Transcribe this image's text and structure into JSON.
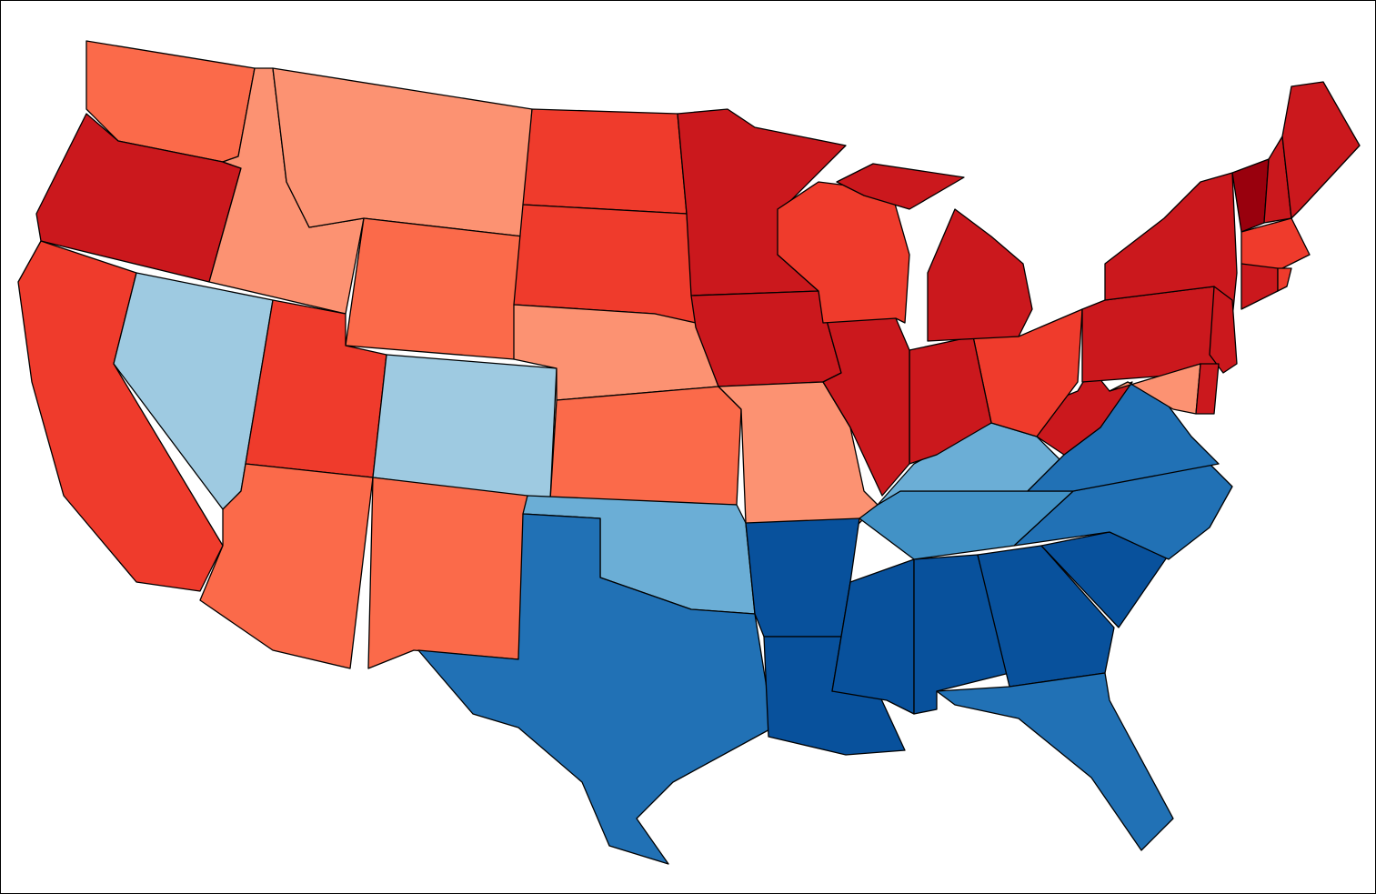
{
  "map": {
    "regions": [
      {
        "color": "#fb6a4a"
      },
      {
        "color": "#cb181d"
      },
      {
        "color": "#ef3b2c"
      },
      {
        "color": "#9ecae1"
      },
      {
        "color": "#fc9272"
      },
      {
        "color": "#fc9272"
      },
      {
        "color": "#fb6a4a"
      },
      {
        "color": "#ef3b2c"
      },
      {
        "color": "#9ecae1"
      },
      {
        "color": "#fb6a4a"
      },
      {
        "color": "#fb6a4a"
      },
      {
        "color": "#ef3b2c"
      },
      {
        "color": "#ef3b2c"
      },
      {
        "color": "#fc9272"
      },
      {
        "color": "#fb6a4a"
      },
      {
        "color": "#6baed6"
      },
      {
        "color": "#2171b5"
      },
      {
        "color": "#cb181d"
      },
      {
        "color": "#cb181d"
      },
      {
        "color": "#fc9272"
      },
      {
        "color": "#08519c"
      },
      {
        "color": "#08519c"
      },
      {
        "color": "#08519c"
      },
      {
        "color": "#08519c"
      },
      {
        "color": "#08519c"
      },
      {
        "color": "#2171b5"
      },
      {
        "color": "#08519c"
      },
      {
        "color": "#2171b5"
      },
      {
        "color": "#4292c6"
      },
      {
        "color": "#6baed6"
      },
      {
        "color": "#2171b5"
      },
      {
        "color": "#cb181d"
      },
      {
        "color": "#ef3b2c"
      },
      {
        "color": "#cb181d"
      },
      {
        "color": "#cb181d"
      },
      {
        "color": "#ef3b2c"
      },
      {
        "color": "#cb181d"
      },
      {
        "color": "#cb181d"
      },
      {
        "color": "#cb181d"
      },
      {
        "color": "#cb181d"
      },
      {
        "color": "#cb181d"
      },
      {
        "color": "#99000d"
      },
      {
        "color": "#cb181d"
      },
      {
        "color": "#cb181d"
      },
      {
        "color": "#ef3b2c"
      },
      {
        "color": "#cb181d"
      },
      {
        "color": "#ef3b2c"
      },
      {
        "color": "#fc9272"
      },
      {
        "color": "#cb181d"
      }
    ]
  }
}
